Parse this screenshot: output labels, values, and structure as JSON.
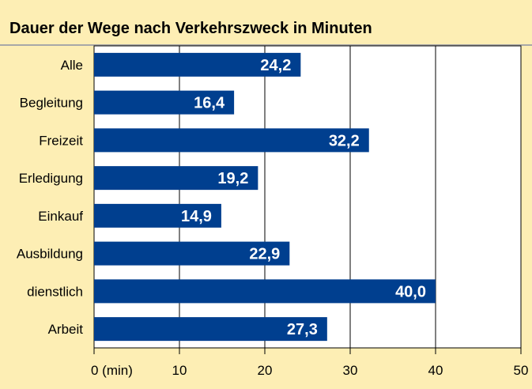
{
  "chart_data": {
    "type": "bar",
    "orientation": "horizontal",
    "title": "Dauer der Wege nach Verkehrszweck in Minuten",
    "categories": [
      "Alle",
      "Begleitung",
      "Freizeit",
      "Erledigung",
      "Einkauf",
      "Ausbildung",
      "dienstlich",
      "Arbeit"
    ],
    "values": [
      24.2,
      16.4,
      32.2,
      19.2,
      14.9,
      22.9,
      40.0,
      27.3
    ],
    "value_labels": [
      "24,2",
      "16,4",
      "32,2",
      "19,2",
      "14,9",
      "22,9",
      "40,0",
      "27,3"
    ],
    "xlim": [
      0,
      50
    ],
    "x_ticks": [
      0,
      10,
      20,
      30,
      40,
      50
    ],
    "x_tick_labels": [
      "0 (min)",
      "10",
      "20",
      "30",
      "40",
      "50"
    ],
    "grid": true,
    "colors": {
      "bar": "#003f8f",
      "background": "#fdeeb4",
      "plot_background": "#ffffff",
      "title_rule": "#a8a8a8"
    }
  }
}
